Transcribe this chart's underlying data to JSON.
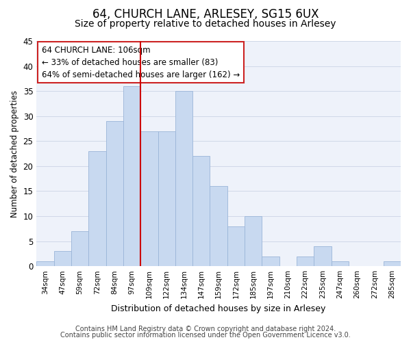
{
  "title1": "64, CHURCH LANE, ARLESEY, SG15 6UX",
  "title2": "Size of property relative to detached houses in Arlesey",
  "xlabel": "Distribution of detached houses by size in Arlesey",
  "ylabel": "Number of detached properties",
  "bar_labels": [
    "34sqm",
    "47sqm",
    "59sqm",
    "72sqm",
    "84sqm",
    "97sqm",
    "109sqm",
    "122sqm",
    "134sqm",
    "147sqm",
    "159sqm",
    "172sqm",
    "185sqm",
    "197sqm",
    "210sqm",
    "222sqm",
    "235sqm",
    "247sqm",
    "260sqm",
    "272sqm",
    "285sqm"
  ],
  "bar_heights": [
    1,
    3,
    7,
    23,
    29,
    36,
    27,
    27,
    35,
    22,
    16,
    8,
    10,
    2,
    0,
    2,
    4,
    1,
    0,
    0,
    1
  ],
  "bar_color": "#c8d9f0",
  "bar_edge_color": "#9ab5d8",
  "vline_x": 5.5,
  "vline_color": "#cc0000",
  "annot_line1": "64 CHURCH LANE: 106sqm",
  "annot_line2": "← 33% of detached houses are smaller (83)",
  "annot_line3": "64% of semi-detached houses are larger (162) →",
  "ylim": [
    0,
    45
  ],
  "yticks": [
    0,
    5,
    10,
    15,
    20,
    25,
    30,
    35,
    40,
    45
  ],
  "grid_color": "#d0d8e8",
  "bg_color": "#eef2fa",
  "footer1": "Contains HM Land Registry data © Crown copyright and database right 2024.",
  "footer2": "Contains public sector information licensed under the Open Government Licence v3.0.",
  "title1_fontsize": 12,
  "title2_fontsize": 10,
  "annot_fontsize": 8.5,
  "ylabel_fontsize": 8.5,
  "xlabel_fontsize": 9,
  "footer_fontsize": 7
}
